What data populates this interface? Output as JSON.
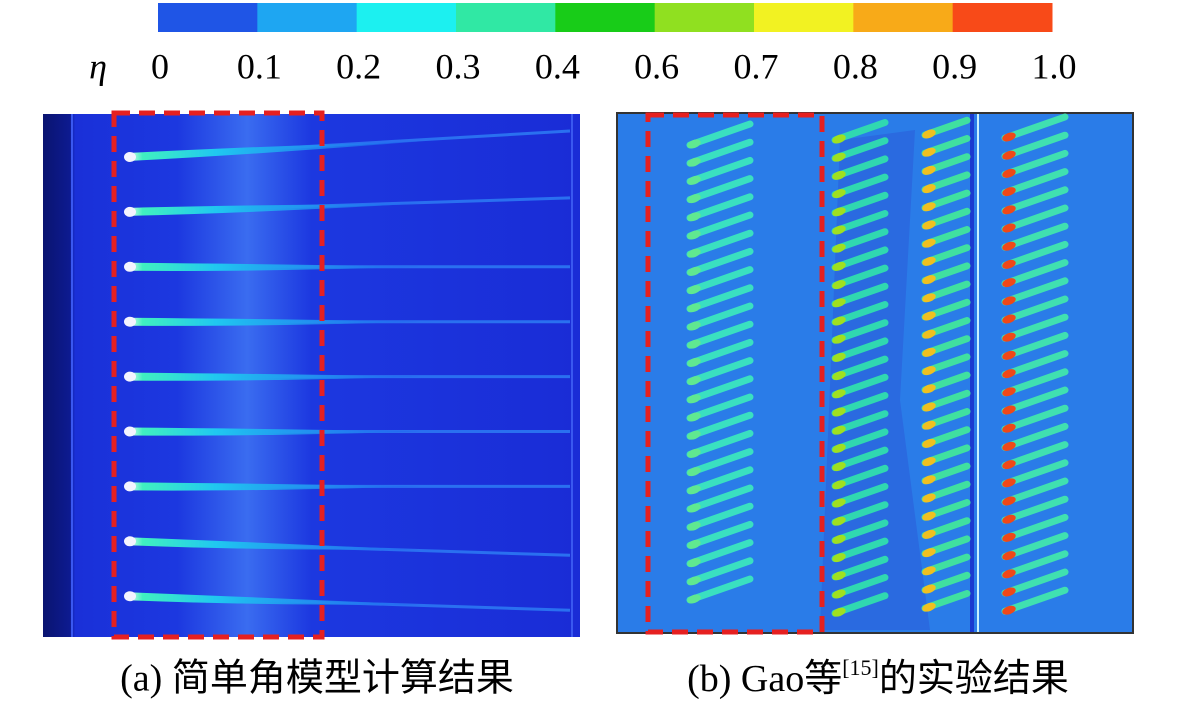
{
  "colorbar": {
    "symbol": "η",
    "labels": [
      "0",
      "0.1",
      "0.2",
      "0.3",
      "0.4",
      "0.6",
      "0.7",
      "0.8",
      "0.9",
      "1.0"
    ],
    "colors": [
      "#1f55e6",
      "#1ea6f2",
      "#1cf0f0",
      "#30e8a4",
      "#18cc18",
      "#90e020",
      "#f2f222",
      "#f8aa18",
      "#f84a18"
    ]
  },
  "panels": [
    {
      "caption": "(a) 简单角模型计算结果"
    },
    {
      "caption_prefix": "(b) Gao等",
      "caption_ref": "[15]",
      "caption_suffix": "的实验结果"
    }
  ]
}
